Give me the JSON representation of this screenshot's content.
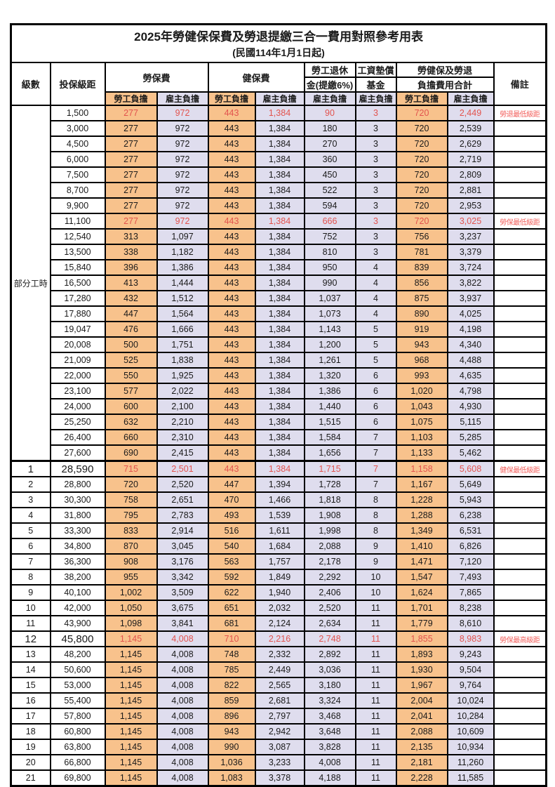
{
  "title": "2025年勞健保保費及勞退提繳三合一費用對照參考用表",
  "subtitle": "(民國114年1月1日起)",
  "columns": {
    "level": "級數",
    "bracket": "投保級距",
    "labor_insurance": "勞保費",
    "health_insurance": "健保費",
    "pension_line1": "勞工退休",
    "pension_line2": "金(提繳6%)",
    "wage_fund_line1": "工資墊償",
    "wage_fund_line2": "基金",
    "total_line1": "勞健保及勞退",
    "total_line2": "負擔費用合計",
    "employee": "勞工負擔",
    "employer": "雇主負擔",
    "note": "備註"
  },
  "group_label": "部分工時",
  "colors": {
    "employee_bg": "#F8C28C",
    "employer_bg": "#DFDDEE",
    "highlight_red": "#E2534E",
    "note_red": "#F2605C",
    "grid": "#000000"
  },
  "rows": [
    {
      "level": "",
      "bracket": "1,500",
      "li_emp": "277",
      "li_er": "972",
      "hi_emp": "443",
      "hi_er": "1,384",
      "pension": "90",
      "fund": "3",
      "tot_emp": "720",
      "tot_er": "2,449",
      "note": "勞退最低級距",
      "highlight": true,
      "emph": false
    },
    {
      "level": "",
      "bracket": "3,000",
      "li_emp": "277",
      "li_er": "972",
      "hi_emp": "443",
      "hi_er": "1,384",
      "pension": "180",
      "fund": "3",
      "tot_emp": "720",
      "tot_er": "2,539",
      "note": "",
      "highlight": false,
      "emph": false
    },
    {
      "level": "",
      "bracket": "4,500",
      "li_emp": "277",
      "li_er": "972",
      "hi_emp": "443",
      "hi_er": "1,384",
      "pension": "270",
      "fund": "3",
      "tot_emp": "720",
      "tot_er": "2,629",
      "note": "",
      "highlight": false,
      "emph": false
    },
    {
      "level": "",
      "bracket": "6,000",
      "li_emp": "277",
      "li_er": "972",
      "hi_emp": "443",
      "hi_er": "1,384",
      "pension": "360",
      "fund": "3",
      "tot_emp": "720",
      "tot_er": "2,719",
      "note": "",
      "highlight": false,
      "emph": false
    },
    {
      "level": "",
      "bracket": "7,500",
      "li_emp": "277",
      "li_er": "972",
      "hi_emp": "443",
      "hi_er": "1,384",
      "pension": "450",
      "fund": "3",
      "tot_emp": "720",
      "tot_er": "2,809",
      "note": "",
      "highlight": false,
      "emph": false
    },
    {
      "level": "",
      "bracket": "8,700",
      "li_emp": "277",
      "li_er": "972",
      "hi_emp": "443",
      "hi_er": "1,384",
      "pension": "522",
      "fund": "3",
      "tot_emp": "720",
      "tot_er": "2,881",
      "note": "",
      "highlight": false,
      "emph": false
    },
    {
      "level": "",
      "bracket": "9,900",
      "li_emp": "277",
      "li_er": "972",
      "hi_emp": "443",
      "hi_er": "1,384",
      "pension": "594",
      "fund": "3",
      "tot_emp": "720",
      "tot_er": "2,953",
      "note": "",
      "highlight": false,
      "emph": false
    },
    {
      "level": "",
      "bracket": "11,100",
      "li_emp": "277",
      "li_er": "972",
      "hi_emp": "443",
      "hi_er": "1,384",
      "pension": "666",
      "fund": "3",
      "tot_emp": "720",
      "tot_er": "3,025",
      "note": "勞保最低級距",
      "highlight": true,
      "emph": false
    },
    {
      "level": "",
      "bracket": "12,540",
      "li_emp": "313",
      "li_er": "1,097",
      "hi_emp": "443",
      "hi_er": "1,384",
      "pension": "752",
      "fund": "3",
      "tot_emp": "756",
      "tot_er": "3,237",
      "note": "",
      "highlight": false,
      "emph": false
    },
    {
      "level": "",
      "bracket": "13,500",
      "li_emp": "338",
      "li_er": "1,182",
      "hi_emp": "443",
      "hi_er": "1,384",
      "pension": "810",
      "fund": "3",
      "tot_emp": "781",
      "tot_er": "3,379",
      "note": "",
      "highlight": false,
      "emph": false
    },
    {
      "level": "",
      "bracket": "15,840",
      "li_emp": "396",
      "li_er": "1,386",
      "hi_emp": "443",
      "hi_er": "1,384",
      "pension": "950",
      "fund": "4",
      "tot_emp": "839",
      "tot_er": "3,724",
      "note": "",
      "highlight": false,
      "emph": false
    },
    {
      "level": "",
      "bracket": "16,500",
      "li_emp": "413",
      "li_er": "1,444",
      "hi_emp": "443",
      "hi_er": "1,384",
      "pension": "990",
      "fund": "4",
      "tot_emp": "856",
      "tot_er": "3,822",
      "note": "",
      "highlight": false,
      "emph": false
    },
    {
      "level": "",
      "bracket": "17,280",
      "li_emp": "432",
      "li_er": "1,512",
      "hi_emp": "443",
      "hi_er": "1,384",
      "pension": "1,037",
      "fund": "4",
      "tot_emp": "875",
      "tot_er": "3,937",
      "note": "",
      "highlight": false,
      "emph": false
    },
    {
      "level": "",
      "bracket": "17,880",
      "li_emp": "447",
      "li_er": "1,564",
      "hi_emp": "443",
      "hi_er": "1,384",
      "pension": "1,073",
      "fund": "4",
      "tot_emp": "890",
      "tot_er": "4,025",
      "note": "",
      "highlight": false,
      "emph": false
    },
    {
      "level": "",
      "bracket": "19,047",
      "li_emp": "476",
      "li_er": "1,666",
      "hi_emp": "443",
      "hi_er": "1,384",
      "pension": "1,143",
      "fund": "5",
      "tot_emp": "919",
      "tot_er": "4,198",
      "note": "",
      "highlight": false,
      "emph": false
    },
    {
      "level": "",
      "bracket": "20,008",
      "li_emp": "500",
      "li_er": "1,751",
      "hi_emp": "443",
      "hi_er": "1,384",
      "pension": "1,200",
      "fund": "5",
      "tot_emp": "943",
      "tot_er": "4,340",
      "note": "",
      "highlight": false,
      "emph": false
    },
    {
      "level": "",
      "bracket": "21,009",
      "li_emp": "525",
      "li_er": "1,838",
      "hi_emp": "443",
      "hi_er": "1,384",
      "pension": "1,261",
      "fund": "5",
      "tot_emp": "968",
      "tot_er": "4,488",
      "note": "",
      "highlight": false,
      "emph": false
    },
    {
      "level": "",
      "bracket": "22,000",
      "li_emp": "550",
      "li_er": "1,925",
      "hi_emp": "443",
      "hi_er": "1,384",
      "pension": "1,320",
      "fund": "6",
      "tot_emp": "993",
      "tot_er": "4,635",
      "note": "",
      "highlight": false,
      "emph": false
    },
    {
      "level": "",
      "bracket": "23,100",
      "li_emp": "577",
      "li_er": "2,022",
      "hi_emp": "443",
      "hi_er": "1,384",
      "pension": "1,386",
      "fund": "6",
      "tot_emp": "1,020",
      "tot_er": "4,798",
      "note": "",
      "highlight": false,
      "emph": false
    },
    {
      "level": "",
      "bracket": "24,000",
      "li_emp": "600",
      "li_er": "2,100",
      "hi_emp": "443",
      "hi_er": "1,384",
      "pension": "1,440",
      "fund": "6",
      "tot_emp": "1,043",
      "tot_er": "4,930",
      "note": "",
      "highlight": false,
      "emph": false
    },
    {
      "level": "",
      "bracket": "25,250",
      "li_emp": "632",
      "li_er": "2,210",
      "hi_emp": "443",
      "hi_er": "1,384",
      "pension": "1,515",
      "fund": "6",
      "tot_emp": "1,075",
      "tot_er": "5,115",
      "note": "",
      "highlight": false,
      "emph": false
    },
    {
      "level": "",
      "bracket": "26,400",
      "li_emp": "660",
      "li_er": "2,310",
      "hi_emp": "443",
      "hi_er": "1,384",
      "pension": "1,584",
      "fund": "7",
      "tot_emp": "1,103",
      "tot_er": "5,285",
      "note": "",
      "highlight": false,
      "emph": false
    },
    {
      "level": "",
      "bracket": "27,600",
      "li_emp": "690",
      "li_er": "2,415",
      "hi_emp": "443",
      "hi_er": "1,384",
      "pension": "1,656",
      "fund": "7",
      "tot_emp": "1,133",
      "tot_er": "5,462",
      "note": "",
      "highlight": false,
      "emph": false
    },
    {
      "level": "1",
      "bracket": "28,590",
      "li_emp": "715",
      "li_er": "2,501",
      "hi_emp": "443",
      "hi_er": "1,384",
      "pension": "1,715",
      "fund": "7",
      "tot_emp": "1,158",
      "tot_er": "5,608",
      "note": "健保最低級距",
      "highlight": true,
      "emph": true
    },
    {
      "level": "2",
      "bracket": "28,800",
      "li_emp": "720",
      "li_er": "2,520",
      "hi_emp": "447",
      "hi_er": "1,394",
      "pension": "1,728",
      "fund": "7",
      "tot_emp": "1,167",
      "tot_er": "5,649",
      "note": "",
      "highlight": false,
      "emph": false
    },
    {
      "level": "3",
      "bracket": "30,300",
      "li_emp": "758",
      "li_er": "2,651",
      "hi_emp": "470",
      "hi_er": "1,466",
      "pension": "1,818",
      "fund": "8",
      "tot_emp": "1,228",
      "tot_er": "5,943",
      "note": "",
      "highlight": false,
      "emph": false
    },
    {
      "level": "4",
      "bracket": "31,800",
      "li_emp": "795",
      "li_er": "2,783",
      "hi_emp": "493",
      "hi_er": "1,539",
      "pension": "1,908",
      "fund": "8",
      "tot_emp": "1,288",
      "tot_er": "6,238",
      "note": "",
      "highlight": false,
      "emph": false
    },
    {
      "level": "5",
      "bracket": "33,300",
      "li_emp": "833",
      "li_er": "2,914",
      "hi_emp": "516",
      "hi_er": "1,611",
      "pension": "1,998",
      "fund": "8",
      "tot_emp": "1,349",
      "tot_er": "6,531",
      "note": "",
      "highlight": false,
      "emph": false
    },
    {
      "level": "6",
      "bracket": "34,800",
      "li_emp": "870",
      "li_er": "3,045",
      "hi_emp": "540",
      "hi_er": "1,684",
      "pension": "2,088",
      "fund": "9",
      "tot_emp": "1,410",
      "tot_er": "6,826",
      "note": "",
      "highlight": false,
      "emph": false
    },
    {
      "level": "7",
      "bracket": "36,300",
      "li_emp": "908",
      "li_er": "3,176",
      "hi_emp": "563",
      "hi_er": "1,757",
      "pension": "2,178",
      "fund": "9",
      "tot_emp": "1,471",
      "tot_er": "7,120",
      "note": "",
      "highlight": false,
      "emph": false
    },
    {
      "level": "8",
      "bracket": "38,200",
      "li_emp": "955",
      "li_er": "3,342",
      "hi_emp": "592",
      "hi_er": "1,849",
      "pension": "2,292",
      "fund": "10",
      "tot_emp": "1,547",
      "tot_er": "7,493",
      "note": "",
      "highlight": false,
      "emph": false
    },
    {
      "level": "9",
      "bracket": "40,100",
      "li_emp": "1,002",
      "li_er": "3,509",
      "hi_emp": "622",
      "hi_er": "1,940",
      "pension": "2,406",
      "fund": "10",
      "tot_emp": "1,624",
      "tot_er": "7,865",
      "note": "",
      "highlight": false,
      "emph": false
    },
    {
      "level": "10",
      "bracket": "42,000",
      "li_emp": "1,050",
      "li_er": "3,675",
      "hi_emp": "651",
      "hi_er": "2,032",
      "pension": "2,520",
      "fund": "11",
      "tot_emp": "1,701",
      "tot_er": "8,238",
      "note": "",
      "highlight": false,
      "emph": false
    },
    {
      "level": "11",
      "bracket": "43,900",
      "li_emp": "1,098",
      "li_er": "3,841",
      "hi_emp": "681",
      "hi_er": "2,124",
      "pension": "2,634",
      "fund": "11",
      "tot_emp": "1,779",
      "tot_er": "8,610",
      "note": "",
      "highlight": false,
      "emph": false
    },
    {
      "level": "12",
      "bracket": "45,800",
      "li_emp": "1,145",
      "li_er": "4,008",
      "hi_emp": "710",
      "hi_er": "2,216",
      "pension": "2,748",
      "fund": "11",
      "tot_emp": "1,855",
      "tot_er": "8,983",
      "note": "勞保最高級距",
      "highlight": true,
      "emph": true
    },
    {
      "level": "13",
      "bracket": "48,200",
      "li_emp": "1,145",
      "li_er": "4,008",
      "hi_emp": "748",
      "hi_er": "2,332",
      "pension": "2,892",
      "fund": "11",
      "tot_emp": "1,893",
      "tot_er": "9,243",
      "note": "",
      "highlight": false,
      "emph": false
    },
    {
      "level": "14",
      "bracket": "50,600",
      "li_emp": "1,145",
      "li_er": "4,008",
      "hi_emp": "785",
      "hi_er": "2,449",
      "pension": "3,036",
      "fund": "11",
      "tot_emp": "1,930",
      "tot_er": "9,504",
      "note": "",
      "highlight": false,
      "emph": false
    },
    {
      "level": "15",
      "bracket": "53,000",
      "li_emp": "1,145",
      "li_er": "4,008",
      "hi_emp": "822",
      "hi_er": "2,565",
      "pension": "3,180",
      "fund": "11",
      "tot_emp": "1,967",
      "tot_er": "9,764",
      "note": "",
      "highlight": false,
      "emph": false
    },
    {
      "level": "16",
      "bracket": "55,400",
      "li_emp": "1,145",
      "li_er": "4,008",
      "hi_emp": "859",
      "hi_er": "2,681",
      "pension": "3,324",
      "fund": "11",
      "tot_emp": "2,004",
      "tot_er": "10,024",
      "note": "",
      "highlight": false,
      "emph": false
    },
    {
      "level": "17",
      "bracket": "57,800",
      "li_emp": "1,145",
      "li_er": "4,008",
      "hi_emp": "896",
      "hi_er": "2,797",
      "pension": "3,468",
      "fund": "11",
      "tot_emp": "2,041",
      "tot_er": "10,284",
      "note": "",
      "highlight": false,
      "emph": false
    },
    {
      "level": "18",
      "bracket": "60,800",
      "li_emp": "1,145",
      "li_er": "4,008",
      "hi_emp": "943",
      "hi_er": "2,942",
      "pension": "3,648",
      "fund": "11",
      "tot_emp": "2,088",
      "tot_er": "10,609",
      "note": "",
      "highlight": false,
      "emph": false
    },
    {
      "level": "19",
      "bracket": "63,800",
      "li_emp": "1,145",
      "li_er": "4,008",
      "hi_emp": "990",
      "hi_er": "3,087",
      "pension": "3,828",
      "fund": "11",
      "tot_emp": "2,135",
      "tot_er": "10,934",
      "note": "",
      "highlight": false,
      "emph": false
    },
    {
      "level": "20",
      "bracket": "66,800",
      "li_emp": "1,145",
      "li_er": "4,008",
      "hi_emp": "1,036",
      "hi_er": "3,233",
      "pension": "4,008",
      "fund": "11",
      "tot_emp": "2,181",
      "tot_er": "11,260",
      "note": "",
      "highlight": false,
      "emph": false
    },
    {
      "level": "21",
      "bracket": "69,800",
      "li_emp": "1,145",
      "li_er": "4,008",
      "hi_emp": "1,083",
      "hi_er": "3,378",
      "pension": "4,188",
      "fund": "11",
      "tot_emp": "2,228",
      "tot_er": "11,585",
      "note": "",
      "highlight": false,
      "emph": false
    }
  ]
}
